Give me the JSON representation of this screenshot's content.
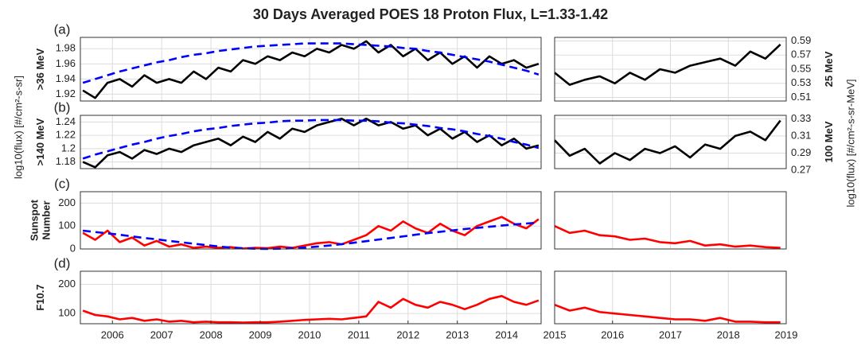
{
  "title": "30 Days Averaged POES 18 Proton Flux, L=1.33-1.42",
  "left_label": "log10(flux) [#/cm²-s-sr]",
  "right_label": "log10(flux) [#/cm²-s-sr-MeV]",
  "chart_data": [
    {
      "type": "line",
      "label": "(a)",
      "ylabel": [
        ">36 MeV"
      ],
      "ylim": [
        1.911,
        1.995
      ],
      "yticks": [
        1.92,
        1.94,
        1.96,
        1.98
      ],
      "grid": true,
      "x": [
        2005.4,
        2005.65,
        2005.9,
        2006.15,
        2006.4,
        2006.65,
        2006.9,
        2007.15,
        2007.4,
        2007.65,
        2007.9,
        2008.15,
        2008.4,
        2008.65,
        2008.9,
        2009.15,
        2009.4,
        2009.65,
        2009.9,
        2010.15,
        2010.4,
        2010.65,
        2010.9,
        2011.15,
        2011.4,
        2011.65,
        2011.9,
        2012.15,
        2012.4,
        2012.65,
        2012.9,
        2013.15,
        2013.4,
        2013.65,
        2013.9,
        2014.15,
        2014.4,
        2014.65
      ],
      "series": [
        {
          "color": "#000000",
          "values": [
            1.925,
            1.915,
            1.935,
            1.94,
            1.93,
            1.945,
            1.935,
            1.94,
            1.935,
            1.95,
            1.94,
            1.955,
            1.95,
            1.965,
            1.96,
            1.97,
            1.965,
            1.975,
            1.97,
            1.98,
            1.975,
            1.985,
            1.98,
            1.99,
            1.975,
            1.985,
            1.97,
            1.98,
            1.965,
            1.975,
            1.96,
            1.97,
            1.955,
            1.97,
            1.96,
            1.965,
            1.955,
            1.96
          ]
        },
        {
          "color": "#0000ff",
          "dashed": true,
          "values": [
            1.935,
            1.94,
            1.945,
            1.95,
            1.954,
            1.958,
            1.962,
            1.965,
            1.969,
            1.972,
            1.974,
            1.977,
            1.979,
            1.981,
            1.983,
            1.984,
            1.985,
            1.986,
            1.987,
            1.987,
            1.987,
            1.987,
            1.986,
            1.985,
            1.984,
            1.983,
            1.981,
            1.98,
            1.977,
            1.975,
            1.972,
            1.969,
            1.966,
            1.963,
            1.959,
            1.955,
            1.951,
            1.946
          ]
        }
      ]
    },
    {
      "type": "line",
      "ylabel": [
        "25 MeV"
      ],
      "ylim": [
        0.505,
        0.595
      ],
      "yticks": [
        0.51,
        0.53,
        0.55,
        0.57,
        0.59
      ],
      "grid": true,
      "x": [
        2015,
        2015.26,
        2015.52,
        2015.78,
        2016.04,
        2016.3,
        2016.56,
        2016.82,
        2017.08,
        2017.34,
        2017.6,
        2017.86,
        2018.12,
        2018.38,
        2018.64,
        2018.9
      ],
      "series": [
        {
          "color": "#000000",
          "values": [
            0.545,
            0.528,
            0.535,
            0.54,
            0.53,
            0.545,
            0.535,
            0.55,
            0.545,
            0.555,
            0.56,
            0.565,
            0.555,
            0.575,
            0.565,
            0.585
          ]
        }
      ]
    },
    {
      "type": "line",
      "label": "(b)",
      "ylabel": [
        ">140 MeV"
      ],
      "ylim": [
        1.17,
        1.25
      ],
      "yticks": [
        1.18,
        1.2,
        1.22,
        1.24
      ],
      "grid": true,
      "x": [
        2005.4,
        2005.65,
        2005.9,
        2006.15,
        2006.4,
        2006.65,
        2006.9,
        2007.15,
        2007.4,
        2007.65,
        2007.9,
        2008.15,
        2008.4,
        2008.65,
        2008.9,
        2009.15,
        2009.4,
        2009.65,
        2009.9,
        2010.15,
        2010.4,
        2010.65,
        2010.9,
        2011.15,
        2011.4,
        2011.65,
        2011.9,
        2012.15,
        2012.4,
        2012.65,
        2012.9,
        2013.15,
        2013.4,
        2013.65,
        2013.9,
        2014.15,
        2014.4,
        2014.65
      ],
      "series": [
        {
          "color": "#000000",
          "values": [
            1.18,
            1.172,
            1.19,
            1.195,
            1.185,
            1.198,
            1.192,
            1.2,
            1.195,
            1.205,
            1.21,
            1.215,
            1.205,
            1.218,
            1.21,
            1.225,
            1.215,
            1.23,
            1.225,
            1.235,
            1.24,
            1.245,
            1.235,
            1.245,
            1.235,
            1.24,
            1.23,
            1.235,
            1.22,
            1.23,
            1.215,
            1.225,
            1.21,
            1.22,
            1.205,
            1.215,
            1.2,
            1.205
          ]
        },
        {
          "color": "#0000ff",
          "dashed": true,
          "values": [
            1.185,
            1.191,
            1.196,
            1.201,
            1.206,
            1.21,
            1.215,
            1.219,
            1.222,
            1.226,
            1.229,
            1.231,
            1.234,
            1.236,
            1.238,
            1.239,
            1.241,
            1.242,
            1.242,
            1.243,
            1.243,
            1.243,
            1.242,
            1.242,
            1.241,
            1.239,
            1.238,
            1.236,
            1.234,
            1.231,
            1.229,
            1.226,
            1.222,
            1.219,
            1.215,
            1.21,
            1.206,
            1.201
          ]
        }
      ]
    },
    {
      "type": "line",
      "ylabel": [
        "100 MeV"
      ],
      "ylim": [
        0.272,
        0.334
      ],
      "yticks": [
        0.27,
        0.29,
        0.31,
        0.33
      ],
      "grid": true,
      "x": [
        2015,
        2015.26,
        2015.52,
        2015.78,
        2016.04,
        2016.3,
        2016.56,
        2016.82,
        2017.08,
        2017.34,
        2017.6,
        2017.86,
        2018.12,
        2018.38,
        2018.64,
        2018.9
      ],
      "series": [
        {
          "color": "#000000",
          "values": [
            0.305,
            0.287,
            0.295,
            0.278,
            0.29,
            0.282,
            0.295,
            0.29,
            0.298,
            0.285,
            0.3,
            0.295,
            0.31,
            0.315,
            0.305,
            0.328
          ]
        }
      ]
    },
    {
      "type": "line",
      "label": "(c)",
      "ylabel": [
        "Sunspot",
        "Number"
      ],
      "ylim": [
        0,
        250
      ],
      "yticks": [
        0,
        100,
        200
      ],
      "grid": true,
      "x": [
        2005.4,
        2005.65,
        2005.9,
        2006.15,
        2006.4,
        2006.65,
        2006.9,
        2007.15,
        2007.4,
        2007.65,
        2007.9,
        2008.15,
        2008.4,
        2008.65,
        2008.9,
        2009.15,
        2009.4,
        2009.65,
        2009.9,
        2010.15,
        2010.4,
        2010.65,
        2010.9,
        2011.15,
        2011.4,
        2011.65,
        2011.9,
        2012.15,
        2012.4,
        2012.65,
        2012.9,
        2013.15,
        2013.4,
        2013.65,
        2013.9,
        2014.15,
        2014.4,
        2014.65
      ],
      "series": [
        {
          "color": "#ff0000",
          "values": [
            70,
            40,
            80,
            30,
            50,
            15,
            35,
            10,
            20,
            5,
            10,
            5,
            8,
            2,
            5,
            3,
            10,
            5,
            15,
            25,
            30,
            20,
            40,
            60,
            100,
            80,
            120,
            90,
            70,
            110,
            80,
            60,
            100,
            120,
            140,
            110,
            90,
            130
          ]
        },
        {
          "color": "#0000ff",
          "dashed": true,
          "values": [
            80,
            74,
            68,
            62,
            55,
            48,
            42,
            35,
            29,
            23,
            17,
            11,
            6,
            3,
            1,
            0,
            1,
            3,
            6,
            10,
            15,
            21,
            27,
            34,
            41,
            48,
            55,
            62,
            69,
            75,
            81,
            87,
            92,
            97,
            102,
            107,
            111,
            115
          ]
        }
      ]
    },
    {
      "type": "line",
      "ylim": [
        0,
        250
      ],
      "grid": true,
      "x": [
        2015,
        2015.26,
        2015.52,
        2015.78,
        2016.04,
        2016.3,
        2016.56,
        2016.82,
        2017.08,
        2017.34,
        2017.6,
        2017.86,
        2018.12,
        2018.38,
        2018.64,
        2018.9
      ],
      "series": [
        {
          "color": "#ff0000",
          "values": [
            100,
            70,
            80,
            60,
            55,
            40,
            45,
            30,
            25,
            35,
            15,
            20,
            10,
            15,
            8,
            5
          ]
        }
      ]
    },
    {
      "type": "line",
      "label": "(d)",
      "ylabel": [
        "F10.7"
      ],
      "ylim": [
        65,
        245
      ],
      "yticks": [
        100,
        200
      ],
      "grid": true,
      "xlim": [
        2005.35,
        2014.7
      ],
      "xticks": [
        2006,
        2007,
        2008,
        2009,
        2010,
        2011,
        2012,
        2013,
        2014
      ],
      "x": [
        2005.4,
        2005.65,
        2005.9,
        2006.15,
        2006.4,
        2006.65,
        2006.9,
        2007.15,
        2007.4,
        2007.65,
        2007.9,
        2008.15,
        2008.4,
        2008.65,
        2008.9,
        2009.15,
        2009.4,
        2009.65,
        2009.9,
        2010.15,
        2010.4,
        2010.65,
        2010.9,
        2011.15,
        2011.4,
        2011.65,
        2011.9,
        2012.15,
        2012.4,
        2012.65,
        2012.9,
        2013.15,
        2013.4,
        2013.65,
        2013.9,
        2014.15,
        2014.4,
        2014.65
      ],
      "series": [
        {
          "color": "#ff0000",
          "values": [
            110,
            95,
            90,
            80,
            85,
            75,
            80,
            72,
            75,
            70,
            72,
            70,
            70,
            69,
            70,
            70,
            72,
            75,
            78,
            80,
            82,
            80,
            85,
            90,
            140,
            120,
            150,
            130,
            120,
            140,
            130,
            115,
            130,
            150,
            160,
            140,
            130,
            145
          ]
        }
      ]
    },
    {
      "type": "line",
      "ylim": [
        65,
        245
      ],
      "grid": true,
      "xlim": [
        2015,
        2019
      ],
      "xticks": [
        2015,
        2016,
        2017,
        2018,
        2019
      ],
      "x": [
        2015,
        2015.26,
        2015.52,
        2015.78,
        2016.04,
        2016.3,
        2016.56,
        2016.82,
        2017.08,
        2017.34,
        2017.6,
        2017.86,
        2018.12,
        2018.38,
        2018.64,
        2018.9
      ],
      "series": [
        {
          "color": "#ff0000",
          "values": [
            130,
            110,
            120,
            105,
            100,
            95,
            90,
            85,
            80,
            80,
            75,
            85,
            72,
            72,
            70,
            70
          ]
        }
      ]
    }
  ]
}
